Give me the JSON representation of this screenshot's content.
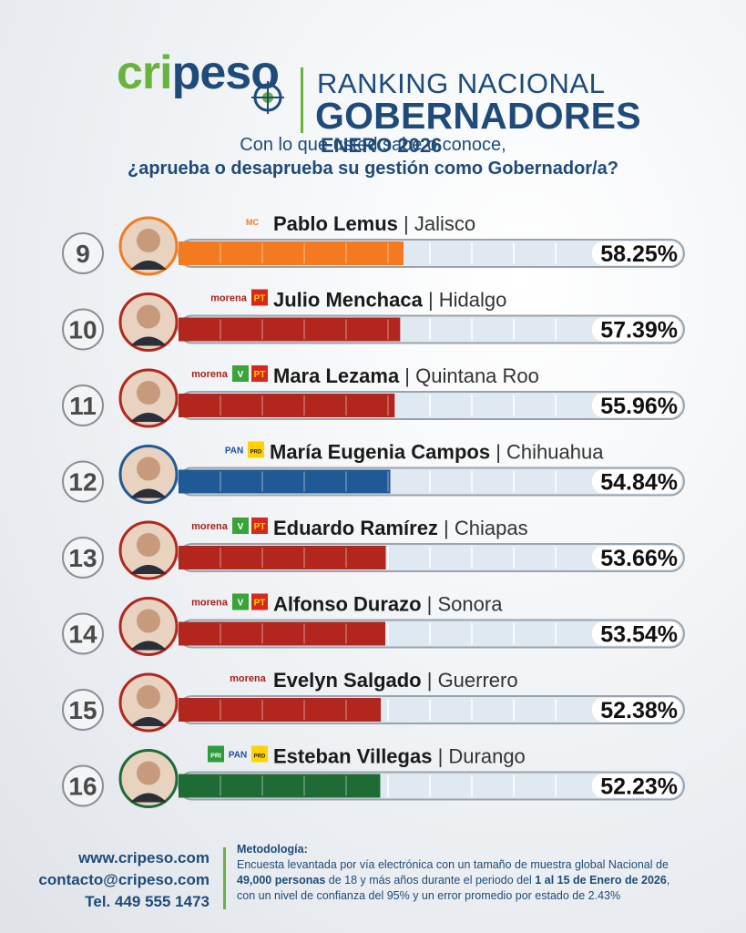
{
  "brand": {
    "logo_part1": "cri",
    "logo_part2": "pes",
    "logo_part3": "o"
  },
  "header": {
    "title_line1": "RANKING NACIONAL",
    "title_line2": "GOBERNADORES",
    "period": "ENERO 2026"
  },
  "question": {
    "line1": "Con lo que usted sabe o conoce,",
    "line2": "¿aprueba o desaprueba su gestión como Gobernador/a?"
  },
  "chart_data": {
    "type": "bar",
    "ylim": [
      0,
      100
    ],
    "grid": true,
    "rows": [
      {
        "rank": "9",
        "name": "Pablo Lemus",
        "state": "Jalisco",
        "value": 58.25,
        "label": "58.25%",
        "color": "#f47a1f",
        "parties": [
          "MOVIMIENTO CIUDADANO"
        ]
      },
      {
        "rank": "10",
        "name": "Julio Menchaca",
        "state": "Hidalgo",
        "value": 57.39,
        "label": "57.39%",
        "color": "#b3261e",
        "parties": [
          "morena",
          "PT"
        ]
      },
      {
        "rank": "11",
        "name": "Mara Lezama",
        "state": "Quintana Roo",
        "value": 55.96,
        "label": "55.96%",
        "color": "#b3261e",
        "parties": [
          "morena",
          "VERDE",
          "PT"
        ]
      },
      {
        "rank": "12",
        "name": "María Eugenia Campos",
        "state": "Chihuahua",
        "value": 54.84,
        "label": "54.84%",
        "color": "#1f5a96",
        "parties": [
          "PAN",
          "PRD"
        ]
      },
      {
        "rank": "13",
        "name": "Eduardo Ramírez",
        "state": "Chiapas",
        "value": 53.66,
        "label": "53.66%",
        "color": "#b3261e",
        "parties": [
          "morena",
          "VERDE",
          "PT"
        ]
      },
      {
        "rank": "14",
        "name": "Alfonso Durazo",
        "state": "Sonora",
        "value": 53.54,
        "label": "53.54%",
        "color": "#b3261e",
        "parties": [
          "morena",
          "VERDE",
          "PT"
        ]
      },
      {
        "rank": "15",
        "name": "Evelyn Salgado",
        "state": "Guerrero",
        "value": 52.38,
        "label": "52.38%",
        "color": "#b3261e",
        "parties": [
          "morena"
        ]
      },
      {
        "rank": "16",
        "name": "Esteban Villegas",
        "state": "Durango",
        "value": 52.23,
        "label": "52.23%",
        "color": "#1e6b36",
        "parties": [
          "PRI",
          "PAN",
          "PRD"
        ]
      }
    ]
  },
  "footer": {
    "website": "www.cripeso.com",
    "email": "contacto@cripeso.com",
    "phone": "Tel. 449 555 1473",
    "methodology_title": "Metodología:",
    "methodology_1": "Encuesta levantada por vía electrónica con un tamaño de muestra global Nacional de",
    "methodology_2a": "49,000 personas",
    "methodology_2b": " de 18 y más años durante el periodo del ",
    "methodology_2c": "1 al 15 de Enero de 2026",
    "methodology_2d": ",",
    "methodology_3": "con un nivel de confianza del 95% y un error promedio por estado de 2.43%"
  }
}
